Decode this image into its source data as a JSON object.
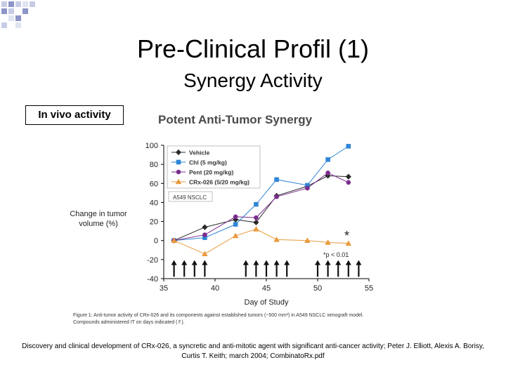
{
  "slide": {
    "title": "Pre-Clinical Profil (1)",
    "subtitle": "Synergy Activity",
    "label_box": "In vivo activity",
    "reference_line1": "Discovery and clinical development of CRx-026, a syncretic and anti-mitotic agent with significant anti-cancer activity; Peter J. Elliott, Alexis A. Borisy,",
    "reference_line2": "Curtis T. Keith; march 2004; CombinatoRx.pdf"
  },
  "colors": {
    "vehicle": "#2b2b2b",
    "chl": "#2f86d6",
    "pent": "#7b2d8e",
    "crx": "#e89a3c"
  },
  "chart_data": {
    "type": "line",
    "title": "Potent Anti-Tumor Synergy",
    "xlabel": "Day of Study",
    "ylabel_line1": "Change in tumor",
    "ylabel_line2": "volume (%)",
    "xlim": [
      35,
      55
    ],
    "ylim": [
      -40,
      100
    ],
    "xticks": [
      35,
      40,
      45,
      50,
      55
    ],
    "yticks": [
      100,
      80,
      60,
      40,
      20,
      0,
      -20,
      -40
    ],
    "series": [
      {
        "name": "Vehicle",
        "marker": "diamond",
        "color_key": "vehicle",
        "x": [
          36,
          39,
          42,
          44,
          46,
          49,
          51,
          53
        ],
        "y": [
          0,
          14,
          22,
          19,
          47,
          57,
          68,
          67
        ]
      },
      {
        "name": "Chl (5 mg/kg)",
        "marker": "square",
        "color_key": "chl",
        "x": [
          36,
          39,
          42,
          44,
          46,
          49,
          51,
          53
        ],
        "y": [
          0,
          3,
          17,
          38,
          64,
          58,
          85,
          99
        ]
      },
      {
        "name": "Pent (20 mg/kg)",
        "marker": "circle",
        "color_key": "pent",
        "x": [
          36,
          39,
          42,
          44,
          46,
          49,
          51,
          53
        ],
        "y": [
          0,
          6,
          25,
          24,
          46,
          55,
          71,
          61
        ]
      },
      {
        "name": "CRx-026 (5/20 mg/kg)",
        "marker": "triangle",
        "color_key": "crx",
        "x": [
          36,
          39,
          42,
          44,
          46,
          49,
          51,
          53
        ],
        "y": [
          0,
          -14,
          5,
          12,
          1,
          0,
          -2,
          -3
        ]
      }
    ],
    "model_label": "A549 NSCLC",
    "significance_star": "*",
    "significance_note": "*p < 0.01",
    "dosing_days": [
      36,
      37,
      38,
      39,
      43,
      44,
      45,
      46,
      47,
      50,
      51,
      52,
      53,
      54
    ],
    "caption_line1": "Figure 1: Anti-tumor activity of CRx-026 and its components against established tumors (~500 mm³) in A549 NSCLC xenograft model.",
    "caption_line2": "Compounds administered IT on days indicated (⇑)."
  }
}
